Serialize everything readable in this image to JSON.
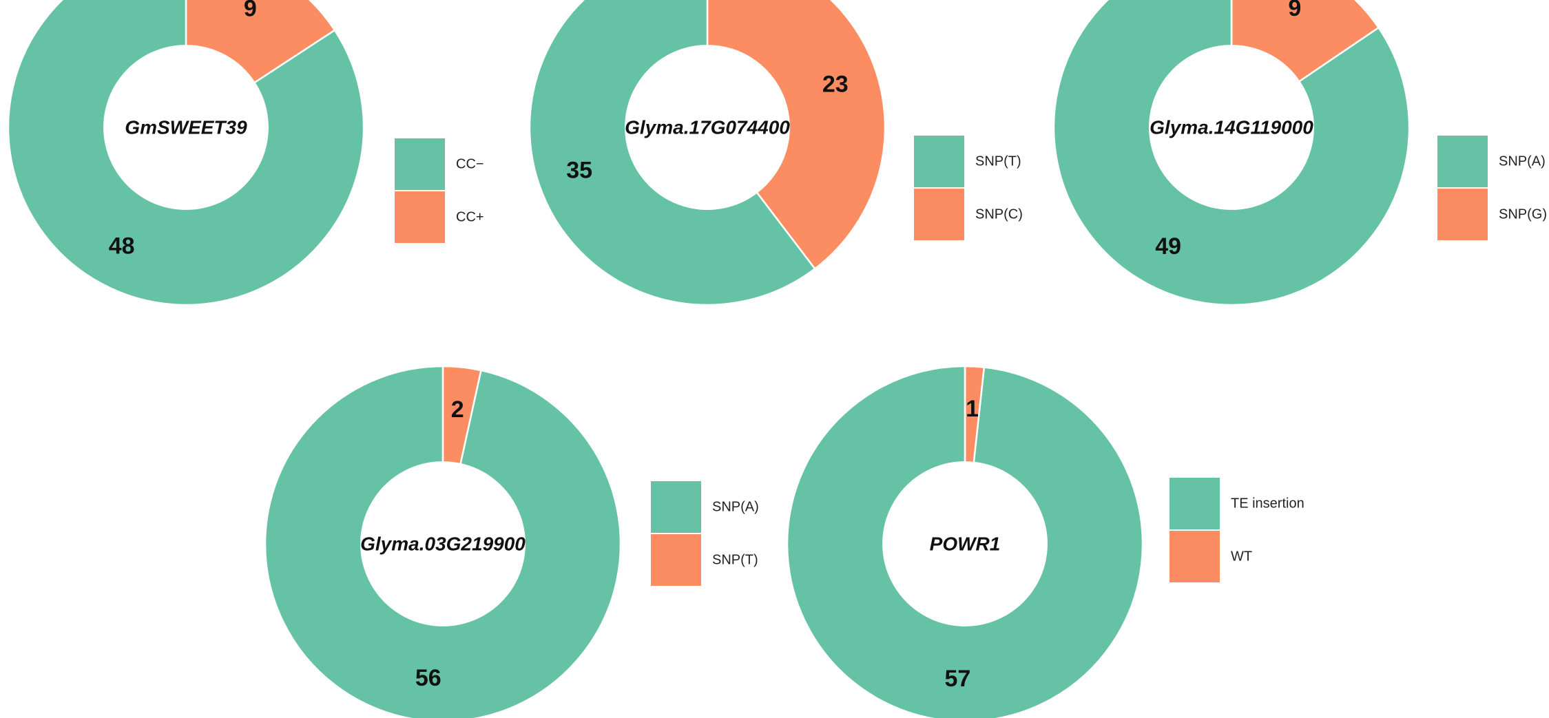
{
  "colors": {
    "first": "#66c2a5",
    "second": "#fc8d62"
  },
  "chart_data": [
    {
      "type": "pie",
      "center_label": "GmSWEET39",
      "slices": [
        {
          "name": "CC−",
          "value": 48
        },
        {
          "name": "CC+",
          "value": 9
        }
      ]
    },
    {
      "type": "pie",
      "center_label": "Glyma.17G074400",
      "slices": [
        {
          "name": "SNP(T)",
          "value": 35
        },
        {
          "name": "SNP(C)",
          "value": 23
        }
      ]
    },
    {
      "type": "pie",
      "center_label": "Glyma.14G119000",
      "slices": [
        {
          "name": "SNP(A)",
          "value": 49
        },
        {
          "name": "SNP(G)",
          "value": 9
        }
      ]
    },
    {
      "type": "pie",
      "center_label": "Glyma.03G219900",
      "slices": [
        {
          "name": "SNP(A)",
          "value": 56
        },
        {
          "name": "SNP(T)",
          "value": 2
        }
      ]
    },
    {
      "type": "pie",
      "center_label": "POWR1",
      "slices": [
        {
          "name": "TE insertion",
          "value": 57
        },
        {
          "name": "WT",
          "value": 1
        }
      ]
    }
  ]
}
